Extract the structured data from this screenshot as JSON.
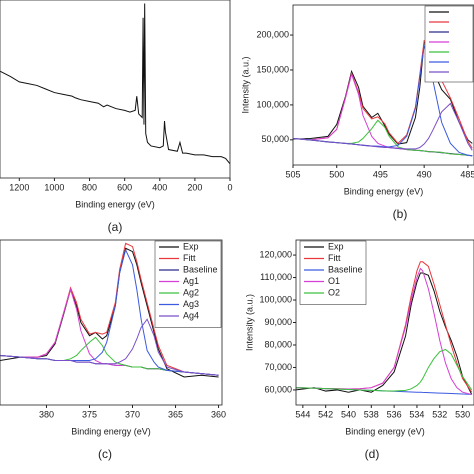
{
  "chart_data": [
    {
      "type": "line",
      "caption": "(a)",
      "xlabel": "Binding energy (eV)",
      "x": [
        1310,
        1250,
        1200,
        1150,
        1100,
        1050,
        1000,
        950,
        900,
        880,
        850,
        800,
        750,
        720,
        700,
        650,
        600,
        570,
        540,
        531,
        520,
        500,
        495,
        490,
        486,
        480,
        470,
        450,
        400,
        380,
        373,
        368,
        350,
        300,
        285,
        270,
        250,
        200,
        150,
        100,
        50,
        25,
        0
      ],
      "series": [
        {
          "color": "#111111",
          "values": [
            60,
            57,
            54,
            53,
            52,
            50,
            48,
            47,
            46,
            45,
            44,
            43,
            42,
            40,
            41,
            39,
            38,
            37,
            38,
            46,
            36,
            34,
            90,
            30,
            98,
            25,
            20,
            18,
            17,
            18,
            32,
            26,
            16,
            15,
            20,
            14,
            14,
            13,
            13,
            12,
            12,
            11,
            8
          ]
        }
      ],
      "xlim": [
        1310,
        0
      ],
      "ylim": [
        0,
        100
      ],
      "xticks": [
        1200,
        1000,
        800,
        600,
        400,
        200,
        0
      ]
    },
    {
      "type": "line",
      "caption": "(b)",
      "xlabel": "Binding energy (eV)",
      "ylabel": "Intensity (a.u.)",
      "x": [
        505,
        503,
        501,
        500,
        499,
        498.3,
        497.5,
        497,
        496,
        495.3,
        494.5,
        494,
        493,
        492,
        491,
        490.5,
        490,
        489.5,
        489,
        488,
        487,
        486,
        485,
        484.5
      ],
      "series": [
        {
          "color": "#111111",
          "values": [
            51000,
            52000,
            55000,
            72000,
            112000,
            148000,
            125000,
            98000,
            82000,
            88000,
            70000,
            58000,
            44000,
            46000,
            82000,
            125000,
            190000,
            185000,
            150000,
            122000,
            108000,
            75000,
            50000,
            45000
          ]
        },
        {
          "color": "#e8383d",
          "values": [
            52000,
            50000,
            53000,
            65000,
            110000,
            145000,
            118000,
            95000,
            80000,
            83000,
            73000,
            60000,
            45000,
            57000,
            97000,
            143000,
            192000,
            190000,
            168000,
            135000,
            110000,
            80000,
            48000,
            38000
          ]
        },
        {
          "color": "#2b2b8c",
          "values": [
            52000,
            49600,
            47200,
            46000,
            44800,
            44000,
            43000,
            42400,
            41200,
            40400,
            39400,
            38800,
            37600,
            36400,
            35200,
            34600,
            34000,
            33400,
            32800,
            31600,
            30400,
            29200,
            28000,
            27400
          ]
        },
        {
          "color": "#d63fd6",
          "values": [
            52000,
            50000,
            53000,
            65000,
            110000,
            144000,
            115000,
            85000,
            55000,
            45000,
            41000,
            39000,
            38000,
            36000,
            35000,
            35000,
            34000,
            33000,
            33000,
            32000,
            30000,
            29000,
            28000,
            27000
          ]
        },
        {
          "color": "#3cc03c",
          "values": [
            52000,
            50000,
            47000,
            46000,
            45000,
            45000,
            47000,
            52000,
            66000,
            78000,
            68000,
            55000,
            40000,
            36000,
            35000,
            35000,
            34000,
            33000,
            33000,
            32000,
            30000,
            29000,
            28000,
            27000
          ]
        },
        {
          "color": "#3a5ae0",
          "values": [
            52000,
            50000,
            47000,
            46000,
            45000,
            44000,
            43000,
            42000,
            41000,
            41000,
            40000,
            40000,
            42000,
            55000,
            95000,
            140000,
            184000,
            170000,
            135000,
            75000,
            45000,
            32000,
            28000,
            27000
          ]
        },
        {
          "color": "#7a4fc9",
          "values": [
            52000,
            50000,
            47000,
            46000,
            45000,
            44000,
            43000,
            42000,
            41000,
            40000,
            39000,
            39000,
            38000,
            37000,
            37000,
            39000,
            44000,
            52000,
            64000,
            90000,
            102000,
            75000,
            45000,
            35000
          ]
        }
      ],
      "xlim": [
        505,
        484.3
      ],
      "ylim": [
        14000,
        243000
      ],
      "xticks": [
        505,
        500,
        495,
        490,
        485
      ],
      "yticks": [
        {
          "value": 50000,
          "label": "50,000"
        },
        {
          "value": 100000,
          "label": "100,000"
        },
        {
          "value": 150000,
          "label": "150,000"
        },
        {
          "value": 200000,
          "label": "200,000"
        }
      ],
      "legend": "upper right"
    },
    {
      "type": "line",
      "caption": "(c)",
      "xlabel": "Binding energy (eV)",
      "x": [
        385.4,
        383,
        381,
        380,
        379,
        378,
        377.2,
        376.5,
        376,
        375,
        374.3,
        373.5,
        373,
        372,
        371.5,
        370.8,
        370,
        369.5,
        369,
        368.3,
        367.5,
        367,
        366,
        364,
        362,
        360
      ],
      "series": [
        {
          "name": "Exp",
          "color": "#111111",
          "values": [
            27,
            29,
            29,
            30,
            37,
            55,
            70,
            60,
            50,
            42,
            44,
            40,
            42,
            60,
            80,
            95,
            93,
            85,
            74,
            60,
            44,
            34,
            22,
            17,
            18,
            17
          ]
        },
        {
          "name": "Fitt",
          "color": "#e8383d",
          "values": [
            30,
            29,
            29,
            31,
            38,
            56,
            71,
            62,
            52,
            43,
            44,
            43,
            44,
            62,
            82,
            98,
            96,
            87,
            76,
            62,
            46,
            36,
            24,
            20,
            19,
            18
          ]
        },
        {
          "name": "Baseline",
          "color": "#2b2b8c",
          "values": [
            30,
            29,
            28,
            28,
            27,
            27,
            27,
            26,
            26,
            26,
            25,
            25,
            25,
            24,
            24,
            24,
            23,
            23,
            23,
            22,
            22,
            22,
            21,
            20,
            19,
            18
          ]
        },
        {
          "name": "Ag1",
          "color": "#d63fd6",
          "values": [
            30,
            29,
            29,
            31,
            38,
            56,
            70,
            58,
            45,
            31,
            27,
            25,
            25,
            24,
            24,
            24,
            23,
            23,
            23,
            22,
            22,
            22,
            21,
            20,
            19,
            18
          ]
        },
        {
          "name": "Ag2",
          "color": "#3cc03c",
          "values": [
            30,
            29,
            28,
            28,
            27,
            27,
            28,
            30,
            33,
            38,
            41,
            36,
            31,
            26,
            25,
            24,
            23,
            23,
            23,
            22,
            22,
            22,
            21,
            20,
            19,
            18
          ]
        },
        {
          "name": "Ag3",
          "color": "#3a5ae0",
          "values": [
            30,
            29,
            28,
            28,
            27,
            27,
            27,
            27,
            27,
            27,
            28,
            32,
            38,
            60,
            80,
            94,
            85,
            70,
            52,
            33,
            26,
            23,
            21,
            20,
            19,
            18
          ]
        },
        {
          "name": "Ag4",
          "color": "#7a4fc9",
          "values": [
            30,
            29,
            28,
            28,
            27,
            27,
            27,
            26,
            26,
            26,
            25,
            25,
            25,
            25,
            26,
            28,
            34,
            40,
            47,
            52,
            42,
            32,
            23,
            20,
            19,
            18
          ]
        }
      ],
      "xlim": [
        385.4,
        359.6
      ],
      "ylim": [
        0,
        100
      ],
      "xticks": [
        380,
        375,
        370,
        365,
        360
      ],
      "legend": "upper right"
    },
    {
      "type": "line",
      "caption": "(d)",
      "xlabel": "Binding energy (eV)",
      "ylabel": "Intensity (a.u.)",
      "x": [
        544.6,
        543,
        542,
        541,
        540,
        539,
        538,
        537,
        536,
        535,
        534.5,
        534,
        533.7,
        533.5,
        533,
        532.5,
        532,
        531.5,
        531,
        530.5,
        530,
        529.2
      ],
      "series": [
        {
          "name": "Exp",
          "color": "#111111",
          "values": [
            60000,
            61000,
            59500,
            60000,
            59000,
            60000,
            59000,
            62000,
            68000,
            84000,
            98000,
            108000,
            112000,
            112000,
            111000,
            104000,
            95000,
            88000,
            82000,
            75000,
            66000,
            58000
          ]
        },
        {
          "name": "Fitt",
          "color": "#e8383d",
          "values": [
            61000,
            60800,
            60600,
            60500,
            60400,
            60500,
            61000,
            63000,
            70000,
            89000,
            102000,
            113000,
            117000,
            117000,
            115000,
            107000,
            98000,
            89000,
            80000,
            72000,
            65000,
            59000
          ]
        },
        {
          "name": "Baseline",
          "color": "#3a5ae0",
          "values": [
            61000,
            60800,
            60600,
            60400,
            60200,
            60000,
            59800,
            59600,
            59400,
            59200,
            59100,
            59000,
            59000,
            58900,
            58800,
            58700,
            58600,
            58500,
            58400,
            58300,
            58200,
            58000
          ]
        },
        {
          "name": "O1",
          "color": "#d63fd6",
          "values": [
            61000,
            60800,
            60600,
            60500,
            60400,
            60500,
            61000,
            63000,
            70000,
            88000,
            100000,
            110000,
            114000,
            113000,
            105000,
            94000,
            82000,
            72000,
            65000,
            61000,
            59000,
            58000
          ]
        },
        {
          "name": "O2",
          "color": "#3cc03c",
          "values": [
            61000,
            60800,
            60600,
            60400,
            60200,
            60000,
            59800,
            59600,
            59500,
            59800,
            60500,
            62000,
            63500,
            65000,
            70000,
            74000,
            77000,
            78000,
            76000,
            71000,
            66000,
            60000
          ]
        }
      ],
      "xlim": [
        544.6,
        529
      ],
      "ylim": [
        53300,
        126700
      ],
      "xticks": [
        544,
        542,
        540,
        538,
        536,
        534,
        532,
        530
      ],
      "yticks": [
        {
          "value": 60000,
          "label": "60,000"
        },
        {
          "value": 70000,
          "label": "70,000"
        },
        {
          "value": 80000,
          "label": "80,000"
        },
        {
          "value": 90000,
          "label": "90,000"
        },
        {
          "value": 100000,
          "label": "100,000"
        },
        {
          "value": 110000,
          "label": "110,000"
        },
        {
          "value": 120000,
          "label": "120,000"
        }
      ],
      "legend": "upper left"
    }
  ]
}
